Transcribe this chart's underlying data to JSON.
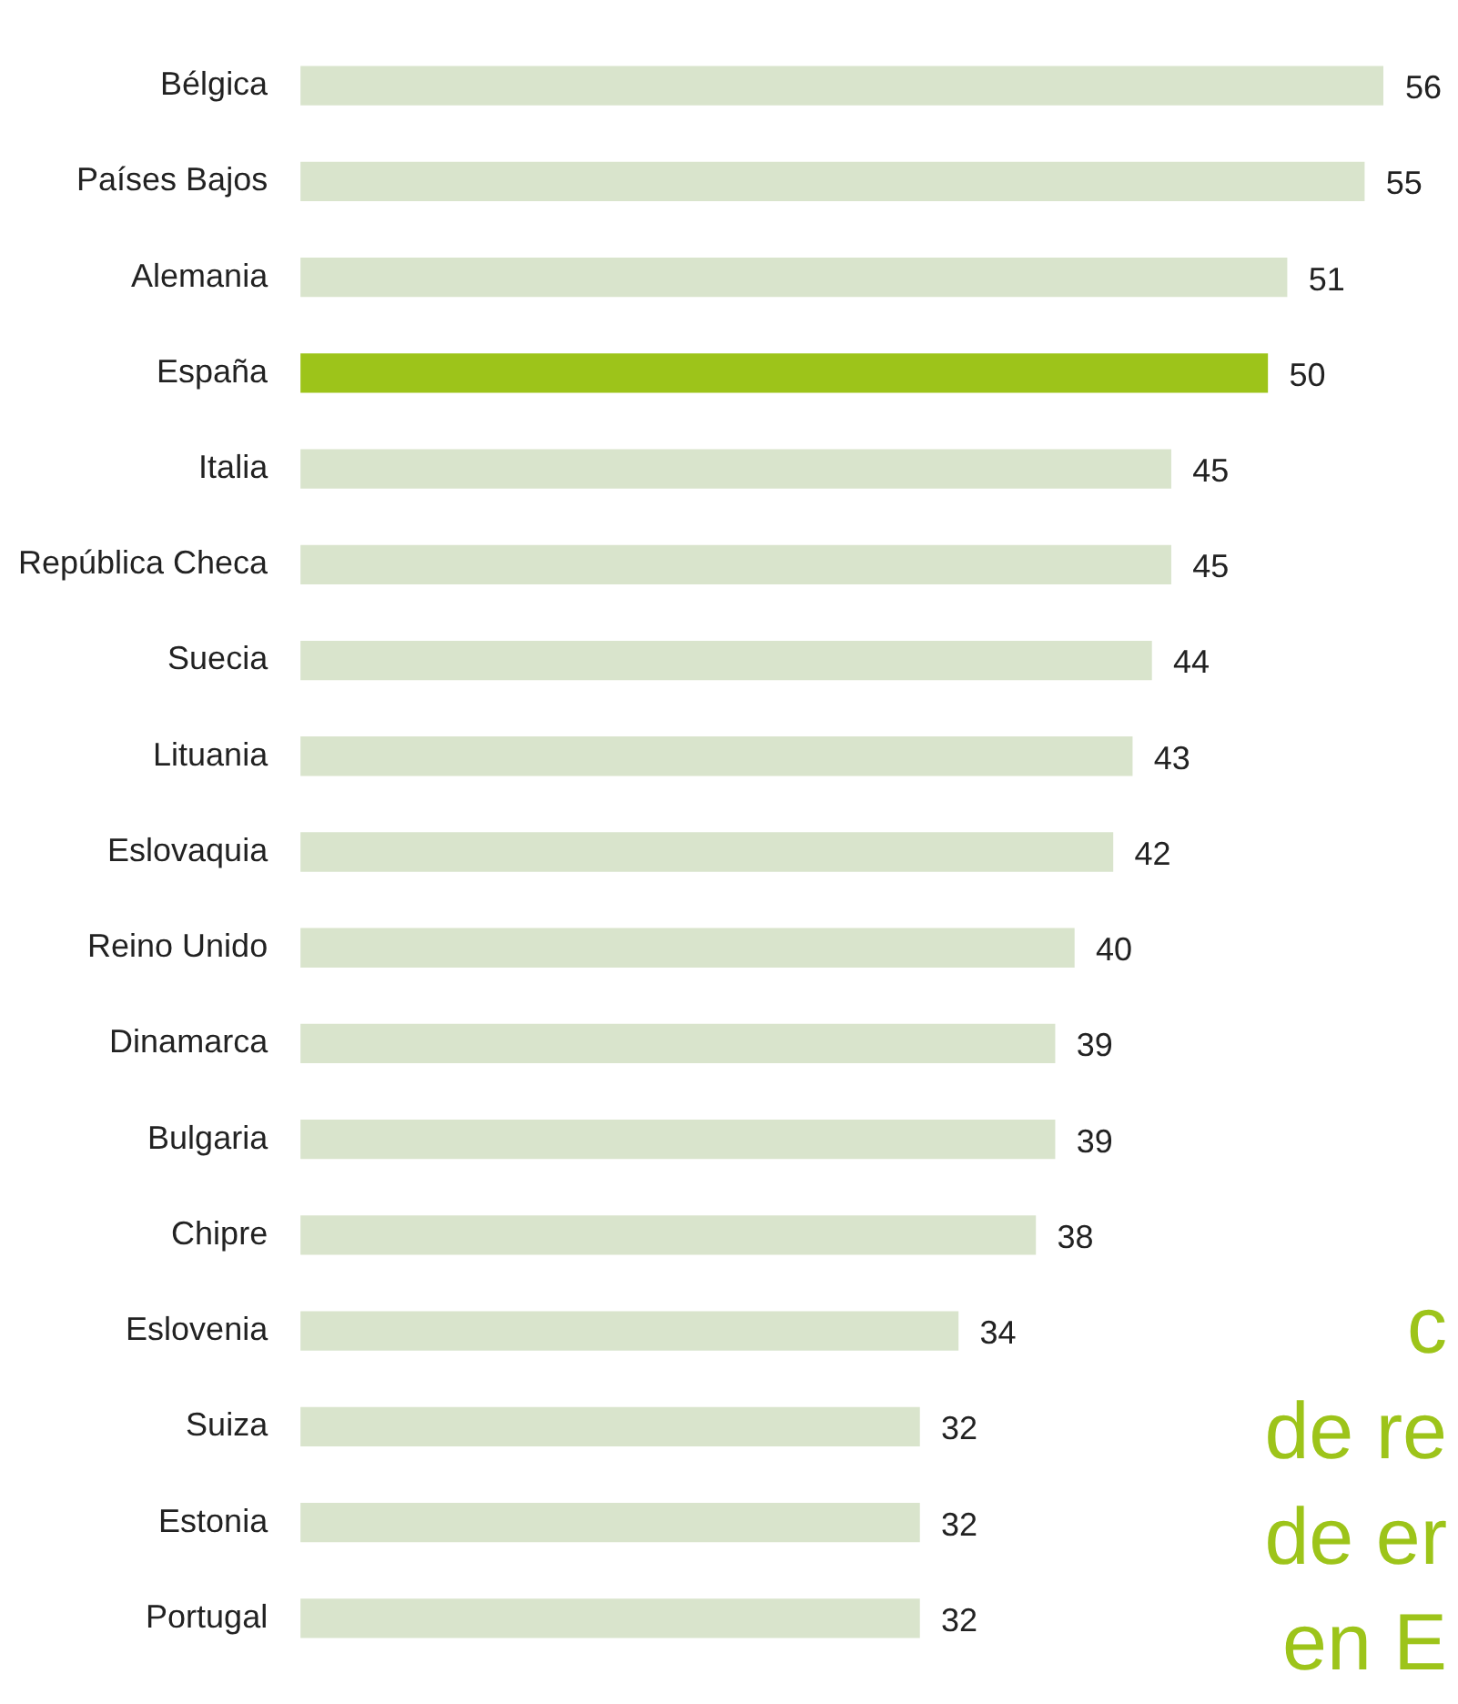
{
  "chart_data": {
    "type": "bar",
    "orientation": "horizontal",
    "data_labels": true,
    "categories": [
      "Bélgica",
      "Países Bajos",
      "Alemania",
      "España",
      "Italia",
      "República Checa",
      "Suecia",
      "Lituania",
      "Eslovaquia",
      "Reino Unido",
      "Dinamarca",
      "Bulgaria",
      "Chipre",
      "Eslovenia",
      "Suiza",
      "Estonia",
      "Portugal"
    ],
    "values": [
      56,
      55,
      51,
      50,
      45,
      45,
      44,
      43,
      42,
      40,
      39,
      39,
      38,
      34,
      32,
      32,
      32
    ],
    "colors": [
      "#d9e4cc",
      "#d9e4cc",
      "#d9e4cc",
      "#9dc41a",
      "#d9e4cc",
      "#d9e4cc",
      "#d9e4cc",
      "#d9e4cc",
      "#d9e4cc",
      "#d9e4cc",
      "#d9e4cc",
      "#d9e4cc",
      "#d9e4cc",
      "#d9e4cc",
      "#d9e4cc",
      "#d9e4cc",
      "#d9e4cc"
    ],
    "annotations": [
      "c\nde re\nde er\nen E"
    ]
  }
}
